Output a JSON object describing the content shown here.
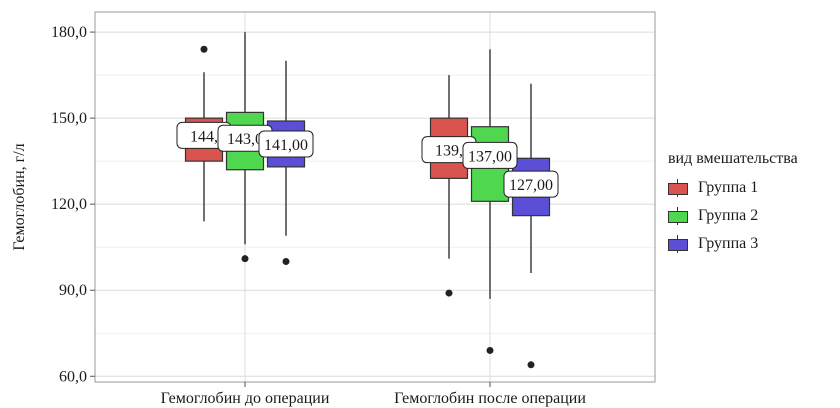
{
  "chart_data": {
    "type": "box",
    "ylabel": "Гемоглобин, г/л",
    "categories": [
      "Гемоглобин до операции",
      "Гемоглобин после операции"
    ],
    "ylim": [
      58,
      187
    ],
    "yticks": [
      60,
      90,
      120,
      150,
      180
    ],
    "ytick_labels": [
      "60,0",
      "90,0",
      "120,0",
      "150,0",
      "180,0"
    ],
    "grid": true,
    "legend": {
      "title": "вид вмешательства",
      "position": "right",
      "entries": [
        "Группа 1",
        "Группа 2",
        "Группа 3"
      ]
    },
    "series": [
      {
        "name": "Группа 1",
        "color": "#d9534f",
        "boxes": [
          {
            "whisker_low": 114,
            "q1": 135,
            "median": 144,
            "q3": 150,
            "whisker_high": 166,
            "outliers": [
              174
            ],
            "label": "144,"
          },
          {
            "whisker_low": 101,
            "q1": 129,
            "median": 139,
            "q3": 150,
            "whisker_high": 165,
            "outliers": [
              89
            ],
            "label": "139,"
          }
        ]
      },
      {
        "name": "Группа 2",
        "color": "#4fd84f",
        "boxes": [
          {
            "whisker_low": 106,
            "q1": 132,
            "median": 143,
            "q3": 152,
            "whisker_high": 180,
            "outliers": [
              101
            ],
            "label": "143,0"
          },
          {
            "whisker_low": 87,
            "q1": 121,
            "median": 137,
            "q3": 147,
            "whisker_high": 174,
            "outliers": [
              69
            ],
            "label": "137,00"
          }
        ]
      },
      {
        "name": "Группа 3",
        "color": "#5b4fd8",
        "boxes": [
          {
            "whisker_low": 109,
            "q1": 133,
            "median": 141,
            "q3": 149,
            "whisker_high": 170,
            "outliers": [
              100
            ],
            "label": "141,00"
          },
          {
            "whisker_low": 96,
            "q1": 116,
            "median": 127,
            "q3": 136,
            "whisker_high": 162,
            "outliers": [
              64
            ],
            "label": "127,00"
          }
        ]
      }
    ]
  }
}
